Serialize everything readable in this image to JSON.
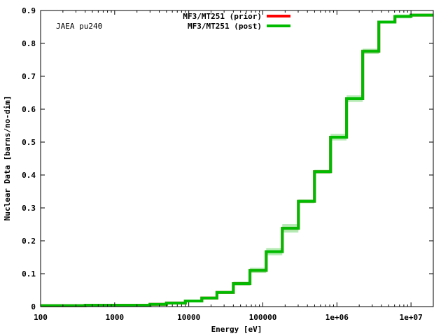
{
  "chart_data": {
    "type": "line",
    "annotation": "JAEA pu240",
    "xlabel": "Energy [eV]",
    "ylabel": "Nuclear Data [barns/no-dim]",
    "xscale": "log",
    "xlim": [
      100,
      20000000
    ],
    "ylim": [
      0,
      0.9
    ],
    "grid": false,
    "legend_position": "top-center",
    "x_ticks": [
      {
        "value": 100,
        "label": "100"
      },
      {
        "value": 1000,
        "label": "1000"
      },
      {
        "value": 10000,
        "label": "10000"
      },
      {
        "value": 100000,
        "label": "100000"
      },
      {
        "value": 1000000,
        "label": "1e+06"
      },
      {
        "value": 10000000,
        "label": "1e+07"
      }
    ],
    "y_ticks": [
      {
        "value": 0,
        "label": "0"
      },
      {
        "value": 0.1,
        "label": "0.1"
      },
      {
        "value": 0.2,
        "label": "0.2"
      },
      {
        "value": 0.3,
        "label": "0.3"
      },
      {
        "value": 0.4,
        "label": "0.4"
      },
      {
        "value": 0.5,
        "label": "0.5"
      },
      {
        "value": 0.6,
        "label": "0.6"
      },
      {
        "value": 0.7,
        "label": "0.7"
      },
      {
        "value": 0.8,
        "label": "0.8"
      },
      {
        "value": 0.9,
        "label": "0.9"
      }
    ],
    "bin_edges": [
      100,
      400,
      3000,
      5000,
      9000,
      15000,
      24000,
      40000,
      67000,
      111000,
      183000,
      302000,
      498000,
      821000,
      1350000,
      2230000,
      3680000,
      6070000,
      10000000,
      20000000
    ],
    "series": [
      {
        "name": "MF3/MT251 (prior)",
        "color": "#ff0000",
        "values": [
          0.003,
          0.004,
          0.007,
          0.011,
          0.017,
          0.026,
          0.043,
          0.07,
          0.11,
          0.167,
          0.238,
          0.32,
          0.41,
          0.515,
          0.632,
          0.776,
          0.865,
          0.882,
          0.886
        ],
        "uncertainty": [
          0.001,
          0.001,
          0.001,
          0.002,
          0.002,
          0.003,
          0.004,
          0.006,
          0.008,
          0.011,
          0.013,
          0.006,
          0.006,
          0.01,
          0.01,
          0.008,
          0.004,
          0.006,
          0.003
        ]
      },
      {
        "name": "MF3/MT251 (post)",
        "color": "#00bb00",
        "values": [
          0.003,
          0.004,
          0.007,
          0.011,
          0.017,
          0.026,
          0.043,
          0.07,
          0.11,
          0.167,
          0.238,
          0.32,
          0.41,
          0.515,
          0.632,
          0.776,
          0.865,
          0.882,
          0.886
        ],
        "uncertainty": [
          0.001,
          0.001,
          0.001,
          0.002,
          0.002,
          0.003,
          0.004,
          0.006,
          0.008,
          0.011,
          0.013,
          0.006,
          0.006,
          0.01,
          0.01,
          0.008,
          0.004,
          0.006,
          0.003
        ]
      }
    ]
  }
}
